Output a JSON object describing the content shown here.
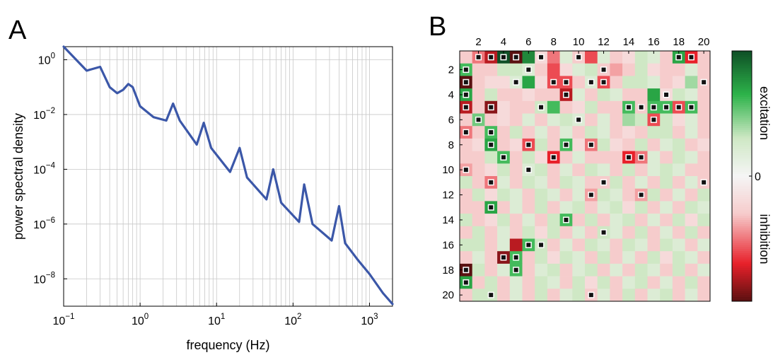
{
  "chart_data": [
    {
      "type": "line",
      "panel_label": "A",
      "xlabel": "frequency (Hz)",
      "ylabel": "power spectral density",
      "x_scale": "log",
      "y_scale": "log",
      "xlim": [
        0.1,
        2000
      ],
      "ylim": [
        1e-09,
        3
      ],
      "x_tick_values": [
        0.1,
        1,
        10,
        100,
        1000
      ],
      "x_tick_labels": [
        {
          "base": "10",
          "exp": "−1"
        },
        {
          "base": "10",
          "exp": "0"
        },
        {
          "base": "10",
          "exp": "1"
        },
        {
          "base": "10",
          "exp": "2"
        },
        {
          "base": "10",
          "exp": "3"
        }
      ],
      "y_tick_values": [
        1,
        0.01,
        0.0001,
        1e-06,
        1e-08
      ],
      "y_tick_labels": [
        {
          "base": "10",
          "exp": "0"
        },
        {
          "base": "10",
          "exp": "−2"
        },
        {
          "base": "10",
          "exp": "−4"
        },
        {
          "base": "10",
          "exp": "−6"
        },
        {
          "base": "10",
          "exp": "−8"
        }
      ],
      "grid": true,
      "line_color": "#3b57a8",
      "series": [
        {
          "x": [
            0.1,
            0.2,
            0.3,
            0.4,
            0.5,
            0.6,
            0.7,
            0.8,
            1.0,
            1.5,
            2.2,
            2.7,
            3.3,
            5.5,
            6.8,
            8.5,
            15,
            20,
            25,
            45,
            55,
            70,
            120,
            140,
            180,
            320,
            400,
            480,
            700,
            1000,
            1500,
            2000
          ],
          "y": [
            3,
            0.4,
            0.55,
            0.1,
            0.06,
            0.08,
            0.13,
            0.1,
            0.02,
            0.008,
            0.006,
            0.025,
            0.006,
            0.0008,
            0.005,
            0.0006,
            8e-05,
            0.0006,
            5e-05,
            8e-06,
            0.0001,
            6e-06,
            1.2e-06,
            2.8e-05,
            1e-06,
            2.5e-07,
            4.5e-06,
            2e-07,
            5e-08,
            1.5e-08,
            3e-09,
            1.2e-09
          ]
        }
      ]
    },
    {
      "type": "heatmap",
      "panel_label": "B",
      "x_tick_labels": [
        "2",
        "4",
        "6",
        "8",
        "10",
        "12",
        "14",
        "16",
        "18",
        "20"
      ],
      "y_tick_labels": [
        "2",
        "4",
        "6",
        "8",
        "10",
        "12",
        "14",
        "16",
        "18",
        "20"
      ],
      "n_rows": 20,
      "n_cols": 20,
      "value_range": [
        -1,
        1
      ],
      "colorbar": {
        "top_label": "excitation",
        "zero_label": "0",
        "bottom_label": "inhibition",
        "position": "right"
      },
      "colors": {
        "strong_excitation": "#0e4f26",
        "excitation": "#2db34a",
        "weak_excitation": "#cfe8c5",
        "zero": "#f5f5f5",
        "weak_inhibition": "#f6cccc",
        "inhibition": "#e8202a",
        "strong_inhibition": "#5a1010",
        "marker": "#111111"
      },
      "values": [
        [
          -0.3,
          -0.5,
          -0.8,
          1.0,
          -1.0,
          0.8,
          -0.2,
          -0.5,
          0.2,
          -0.3,
          -0.6,
          0.2,
          -0.3,
          -0.2,
          0.3,
          0.2,
          -0.3,
          0.7,
          -0.7,
          -0.3
        ],
        [
          0.6,
          -0.3,
          -0.3,
          0.3,
          0.3,
          0.2,
          -0.3,
          -0.6,
          -0.2,
          0.2,
          0.3,
          -0.3,
          -0.4,
          -0.3,
          0.3,
          -0.2,
          -0.3,
          -0.3,
          0.2,
          -0.3
        ],
        [
          -1.0,
          -0.3,
          -0.2,
          -0.2,
          0.2,
          0.7,
          -0.2,
          -0.6,
          -0.6,
          -0.3,
          0.2,
          -0.6,
          -0.3,
          0.3,
          0.3,
          0.2,
          -0.3,
          -0.2,
          0.4,
          -0.3
        ],
        [
          0.7,
          -0.3,
          0.3,
          -0.3,
          -0.3,
          -0.2,
          -0.3,
          -0.3,
          -0.8,
          0.2,
          -0.3,
          0.3,
          0.2,
          -0.3,
          -0.3,
          0.7,
          -0.2,
          0.3,
          0.2,
          -0.3
        ],
        [
          -0.8,
          -0.3,
          -0.9,
          -0.2,
          -0.3,
          -0.3,
          0.3,
          0.6,
          -0.3,
          -0.2,
          0.3,
          -0.3,
          -0.3,
          0.6,
          -0.3,
          0.6,
          0.6,
          -0.6,
          0.6,
          -0.3
        ],
        [
          -0.3,
          0.5,
          -0.3,
          -0.2,
          -0.3,
          0.2,
          -0.3,
          0.2,
          0.3,
          0.2,
          -0.3,
          0.2,
          -0.3,
          0.4,
          0.3,
          -0.6,
          0.3,
          -0.2,
          0.2,
          -0.3
        ],
        [
          -0.5,
          -0.3,
          0.6,
          -0.3,
          0.3,
          -0.3,
          0.2,
          -0.3,
          0.2,
          -0.3,
          0.3,
          0.2,
          -0.3,
          -0.2,
          -0.3,
          0.3,
          0.3,
          -0.3,
          0.2,
          -0.3
        ],
        [
          -0.3,
          -0.2,
          0.7,
          -0.3,
          -0.2,
          -0.6,
          0.3,
          -0.3,
          0.6,
          -0.2,
          -0.5,
          0.3,
          -0.2,
          -0.3,
          0.3,
          -0.3,
          0.2,
          0.3,
          -0.3,
          -0.2
        ],
        [
          -0.3,
          -0.3,
          0.3,
          0.6,
          -0.3,
          0.3,
          -0.2,
          -0.7,
          -0.3,
          0.2,
          -0.3,
          -0.3,
          -0.3,
          -0.7,
          -0.5,
          0.2,
          -0.3,
          0.3,
          0.2,
          -0.3
        ],
        [
          -0.4,
          -0.3,
          -0.2,
          0.3,
          -0.3,
          0.2,
          0.3,
          -0.3,
          0.2,
          -0.3,
          0.3,
          0.2,
          -0.3,
          0.3,
          -0.3,
          0.2,
          0.3,
          0.2,
          -0.3,
          -0.3
        ],
        [
          0.3,
          -0.3,
          -0.5,
          0.2,
          -0.3,
          0.3,
          0.2,
          -0.3,
          0.3,
          0.2,
          -0.3,
          -0.3,
          0.3,
          -0.3,
          0.2,
          -0.3,
          0.3,
          -0.3,
          0.2,
          -0.3
        ],
        [
          -0.3,
          0.3,
          -0.2,
          0.3,
          0.2,
          -0.3,
          0.3,
          0.2,
          -0.3,
          0.2,
          -0.4,
          0.3,
          0.2,
          -0.3,
          -0.4,
          0.3,
          -0.3,
          0.2,
          -0.3,
          0.3
        ],
        [
          -0.3,
          -0.3,
          0.7,
          -0.3,
          0.2,
          -0.3,
          0.3,
          -0.3,
          0.2,
          0.3,
          -0.3,
          0.2,
          0.3,
          -0.2,
          0.3,
          -0.3,
          0.2,
          -0.3,
          0.3,
          0.2
        ],
        [
          0.3,
          -0.3,
          -0.2,
          0.3,
          -0.3,
          0.2,
          -0.3,
          0.3,
          0.6,
          -0.3,
          0.3,
          -0.3,
          0.2,
          0.3,
          -0.3,
          0.2,
          -0.3,
          0.3,
          -0.2,
          0.3
        ],
        [
          -0.3,
          0.3,
          -0.3,
          0.2,
          -0.3,
          0.3,
          -0.2,
          0.3,
          -0.3,
          0.2,
          -0.3,
          0.3,
          0.2,
          -0.3,
          0.3,
          -0.3,
          0.2,
          -0.3,
          0.3,
          -0.3
        ],
        [
          0.3,
          0.3,
          -0.3,
          0.2,
          -0.8,
          0.6,
          0.3,
          -0.3,
          0.2,
          -0.3,
          0.3,
          0.2,
          -0.3,
          0.3,
          0.2,
          -0.3,
          0.3,
          0.2,
          -0.3,
          0.2
        ],
        [
          -0.3,
          0.2,
          -0.3,
          -0.9,
          0.6,
          -0.3,
          0.3,
          -0.2,
          0.3,
          0.2,
          -0.3,
          0.3,
          -0.3,
          0.2,
          -0.3,
          0.3,
          -0.2,
          0.3,
          0.2,
          -0.3
        ],
        [
          -1.0,
          0.3,
          -0.3,
          0.2,
          0.6,
          -0.3,
          0.2,
          0.3,
          -0.3,
          0.2,
          0.3,
          -0.3,
          0.2,
          -0.3,
          0.3,
          0.2,
          -0.3,
          0.3,
          -0.3,
          0.2
        ],
        [
          0.7,
          -0.3,
          0.3,
          -0.3,
          0.2,
          -0.3,
          0.3,
          0.2,
          -0.3,
          0.3,
          -0.2,
          0.3,
          -0.3,
          0.2,
          0.3,
          -0.3,
          0.2,
          -0.3,
          0.3,
          -0.3
        ],
        [
          -0.3,
          0.3,
          0.3,
          -0.3,
          0.2,
          -0.3,
          0.3,
          -0.3,
          0.2,
          0.3,
          -0.3,
          0.2,
          -0.3,
          0.3,
          -0.3,
          0.2,
          0.3,
          -0.3,
          0.2,
          -0.3
        ]
      ],
      "markers": [
        [
          1,
          2
        ],
        [
          1,
          3
        ],
        [
          1,
          4
        ],
        [
          1,
          5
        ],
        [
          1,
          7
        ],
        [
          1,
          10
        ],
        [
          1,
          18
        ],
        [
          1,
          19
        ],
        [
          2,
          1
        ],
        [
          2,
          6
        ],
        [
          2,
          12
        ],
        [
          3,
          1
        ],
        [
          3,
          5
        ],
        [
          3,
          8
        ],
        [
          3,
          9
        ],
        [
          3,
          11
        ],
        [
          3,
          12
        ],
        [
          3,
          20
        ],
        [
          4,
          1
        ],
        [
          4,
          9
        ],
        [
          4,
          17
        ],
        [
          5,
          1
        ],
        [
          5,
          3
        ],
        [
          5,
          7
        ],
        [
          5,
          14
        ],
        [
          5,
          15
        ],
        [
          5,
          16
        ],
        [
          5,
          17
        ],
        [
          5,
          18
        ],
        [
          5,
          19
        ],
        [
          6,
          2
        ],
        [
          6,
          10
        ],
        [
          6,
          16
        ],
        [
          7,
          1
        ],
        [
          7,
          3
        ],
        [
          8,
          3
        ],
        [
          8,
          6
        ],
        [
          8,
          9
        ],
        [
          8,
          11
        ],
        [
          9,
          4
        ],
        [
          9,
          8
        ],
        [
          9,
          14
        ],
        [
          9,
          15
        ],
        [
          10,
          1
        ],
        [
          10,
          6
        ],
        [
          11,
          3
        ],
        [
          11,
          12
        ],
        [
          11,
          20
        ],
        [
          12,
          11
        ],
        [
          12,
          15
        ],
        [
          13,
          3
        ],
        [
          14,
          9
        ],
        [
          15,
          12
        ],
        [
          16,
          6
        ],
        [
          16,
          7
        ],
        [
          17,
          4
        ],
        [
          17,
          5
        ],
        [
          18,
          1
        ],
        [
          18,
          5
        ],
        [
          19,
          1
        ],
        [
          20,
          3
        ],
        [
          20,
          11
        ]
      ]
    }
  ]
}
